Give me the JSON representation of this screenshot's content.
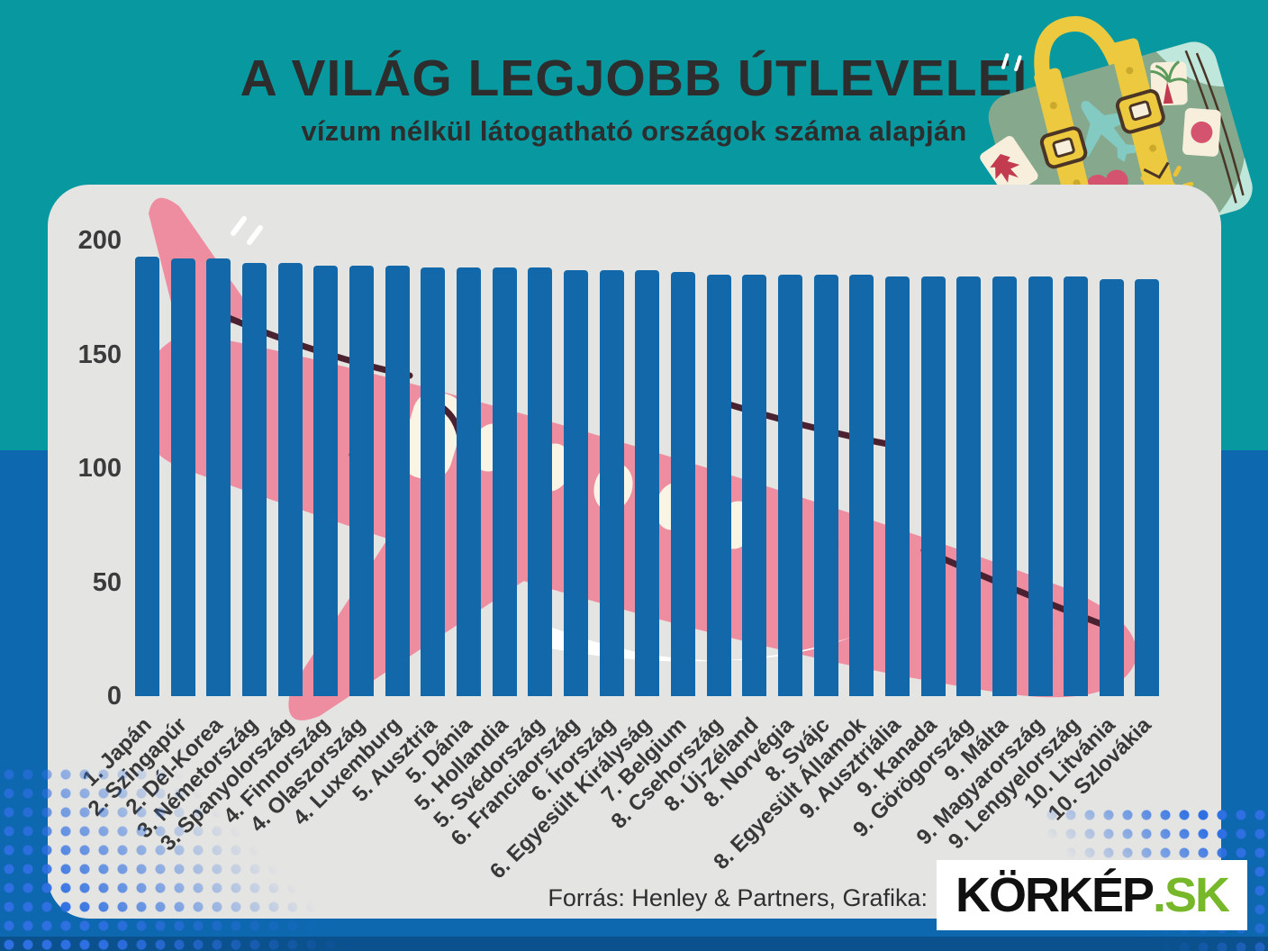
{
  "header": {
    "title": "A VILÁG LEGJOBB ÚTLEVELEI",
    "subtitle": "vízum nélkül látogatható országok száma alapján"
  },
  "chart_data": {
    "type": "bar",
    "title": "A VILÁG LEGJOBB ÚTLEVELEI",
    "subtitle": "vízum nélkül látogatható országok száma alapján",
    "categories": [
      "1. Japán",
      "2. Szingapúr",
      "2. Dél-Korea",
      "3. Németország",
      "3. Spanyolország",
      "4. Finnország",
      "4. Olaszország",
      "4. Luxemburg",
      "5. Ausztria",
      "5. Dánia",
      "5. Hollandia",
      "5. Svédország",
      "6. Franciaország",
      "6. Írország",
      "6. Egyesült Királyság",
      "7. Belgium",
      "8. Csehország",
      "8. Új-Zéland",
      "8. Norvégia",
      "8. Svájc",
      "8. Egyesült Államok",
      "9. Ausztriália",
      "9. Kanada",
      "9. Görögország",
      "9. Málta",
      "9. Magyarország",
      "9. Lengyelország",
      "10. Litvánia",
      "10. Szlovákia"
    ],
    "values": [
      193,
      192,
      192,
      190,
      190,
      189,
      189,
      189,
      188,
      188,
      188,
      188,
      187,
      187,
      187,
      186,
      185,
      185,
      185,
      185,
      185,
      184,
      184,
      184,
      184,
      184,
      184,
      183,
      183
    ],
    "xlabel": "",
    "ylabel": "",
    "yticks": [
      0,
      50,
      100,
      150,
      200
    ],
    "ylim": [
      0,
      200
    ],
    "grid": false,
    "legend": false,
    "bar_color": "#1268a8"
  },
  "footer": {
    "source": "Forrás: Henley & Partners, Grafika:",
    "logo_main": "KÖRKÉP",
    "logo_suffix": ".SK"
  },
  "colors": {
    "teal_bg": "#0899a0",
    "blue_bg": "#0d68b0",
    "strip": "#0a518e",
    "panel": "#e4e4e2",
    "bar": "#1268a8",
    "plane_pink": "#ee8ca0",
    "window_cream": "#faf4e4",
    "line_maroon": "#4a2130",
    "dots_blue": "#2e6fe2",
    "title_text": "#2d2d2d",
    "logo_green": "#76b82a",
    "case_green": "#86a88d",
    "case_mint": "#bfe7dc",
    "case_yellow": "#ecc93e",
    "case_dark": "#4a3526",
    "sticker_heart": "#d4536f",
    "sticker_sun": "#ecc335",
    "sticker_plane": "#83cac2"
  }
}
